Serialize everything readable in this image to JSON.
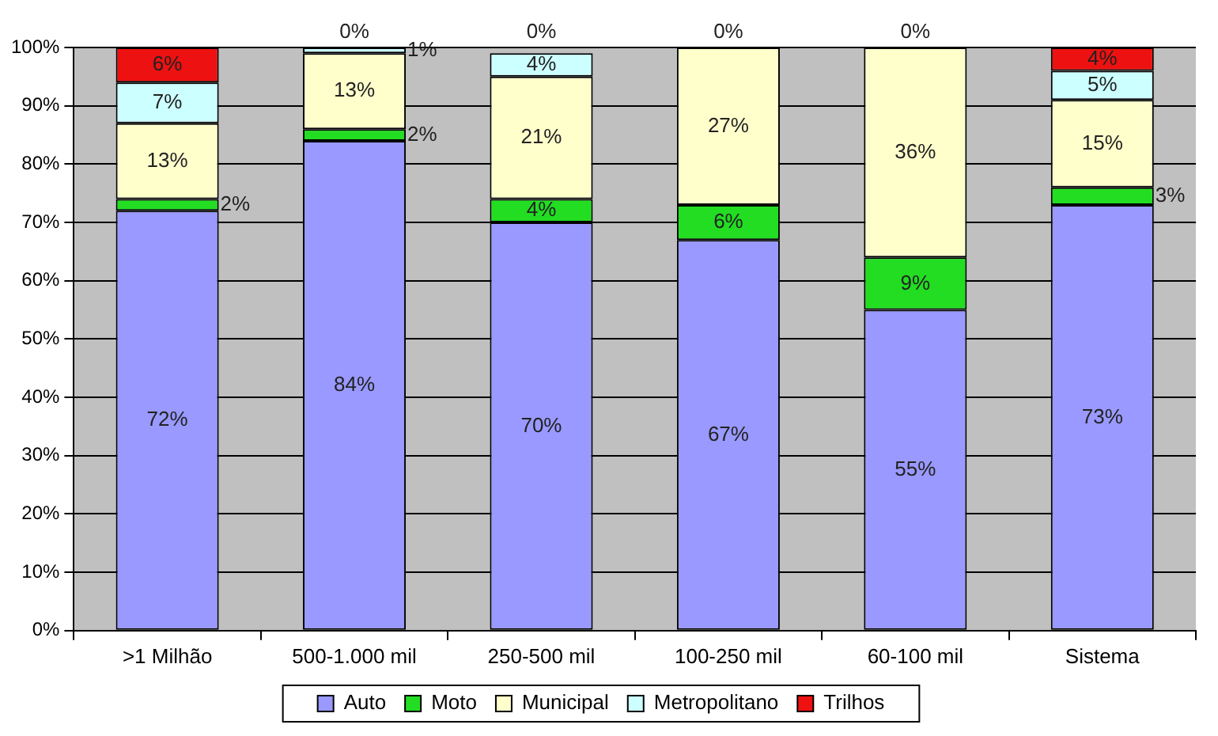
{
  "chart_data": {
    "type": "bar",
    "stacked": true,
    "categories": [
      ">1 Milhão",
      "500-1.000 mil",
      "250-500 mil",
      "100-250 mil",
      "60-100 mil",
      "Sistema"
    ],
    "series": [
      {
        "name": "Auto",
        "color": "#9999ff",
        "values": [
          72,
          84,
          70,
          67,
          55,
          73
        ],
        "value_labels": [
          "72%",
          "84%",
          "70%",
          "67%",
          "55%",
          "73%"
        ]
      },
      {
        "name": "Moto",
        "color": "#22dd22",
        "values": [
          2,
          2,
          4,
          6,
          9,
          3
        ],
        "value_labels": [
          "2%",
          "2%",
          "4%",
          "6%",
          "9%",
          "3%"
        ]
      },
      {
        "name": "Municipal",
        "color": "#ffffcc",
        "values": [
          13,
          13,
          21,
          27,
          36,
          15
        ],
        "value_labels": [
          "13%",
          "13%",
          "21%",
          "27%",
          "36%",
          "15%"
        ]
      },
      {
        "name": "Metropolitano",
        "color": "#ccffff",
        "values": [
          7,
          1,
          4,
          0,
          0,
          5
        ],
        "value_labels": [
          "7%",
          "1%",
          "4%",
          null,
          null,
          "5%"
        ]
      },
      {
        "name": "Trilhos",
        "color": "#ee1111",
        "values": [
          6,
          0,
          0,
          0,
          0,
          4
        ],
        "value_labels": [
          "6%",
          "0%",
          "0%",
          "0%",
          "0%",
          "4%"
        ]
      }
    ],
    "ylim": [
      0,
      100
    ],
    "yticks": [
      {
        "value": 0,
        "label": "0%"
      },
      {
        "value": 10,
        "label": "10%"
      },
      {
        "value": 20,
        "label": "20%"
      },
      {
        "value": 30,
        "label": "30%"
      },
      {
        "value": 40,
        "label": "40%"
      },
      {
        "value": 50,
        "label": "50%"
      },
      {
        "value": 60,
        "label": "60%"
      },
      {
        "value": 70,
        "label": "70%"
      },
      {
        "value": 80,
        "label": "80%"
      },
      {
        "value": 90,
        "label": "90%"
      },
      {
        "value": 100,
        "label": "100%"
      }
    ],
    "grid": "y",
    "legend": "bottom"
  }
}
